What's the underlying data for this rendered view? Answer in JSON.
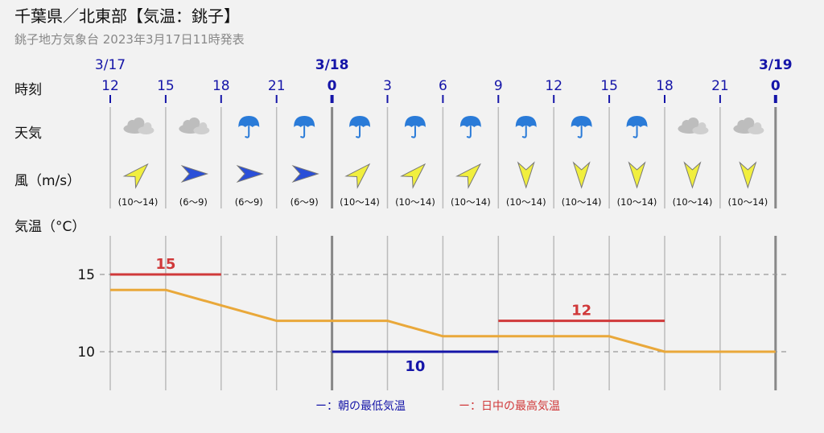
{
  "header": {
    "title": "千葉県／北東部【気温：銚子】",
    "subtitle": "銚子地方気象台 2023年3月17日11時発表"
  },
  "rows": {
    "time_label": "時刻",
    "weather_label": "天気",
    "wind_label": "風（m/s）",
    "temp_label": "気温（°C）"
  },
  "colors": {
    "date": "#1515a8",
    "temp_line": "#e9a83a",
    "min_temp": "#1515a8",
    "max_temp": "#d0393a",
    "wind_arrow": "#f1ef3e",
    "wind_arrow_west": "#2a4fd8",
    "umbrella": "#2a7bd8",
    "cloud": "#bdbdbd"
  },
  "dates": [
    {
      "label": "3/17",
      "slot": 0,
      "bold": false
    },
    {
      "label": "3/18",
      "slot": 4,
      "bold": true
    },
    {
      "label": "3/19",
      "slot": 12,
      "bold": true
    }
  ],
  "time_ticks": [
    "12",
    "15",
    "18",
    "21",
    "0",
    "3",
    "6",
    "9",
    "12",
    "15",
    "18",
    "21",
    "0"
  ],
  "weather": [
    "cloud-icon",
    "cloud-icon",
    "umbrella-icon",
    "umbrella-icon",
    "umbrella-icon",
    "umbrella-icon",
    "umbrella-icon",
    "umbrella-icon",
    "umbrella-icon",
    "umbrella-icon",
    "cloud-icon",
    "cloud-icon"
  ],
  "wind": [
    {
      "dir": "SW",
      "speed": "(10〜14)"
    },
    {
      "dir": "W",
      "speed": "(6〜9)"
    },
    {
      "dir": "W",
      "speed": "(6〜9)"
    },
    {
      "dir": "W",
      "speed": "(6〜9)"
    },
    {
      "dir": "SW",
      "speed": "(10〜14)"
    },
    {
      "dir": "SW",
      "speed": "(10〜14)"
    },
    {
      "dir": "SW",
      "speed": "(10〜14)"
    },
    {
      "dir": "N",
      "speed": "(10〜14)"
    },
    {
      "dir": "N",
      "speed": "(10〜14)"
    },
    {
      "dir": "N",
      "speed": "(10〜14)"
    },
    {
      "dir": "N",
      "speed": "(10〜14)"
    },
    {
      "dir": "N",
      "speed": "(10〜14)"
    }
  ],
  "legend": {
    "min_label": "ー：朝の最低気温",
    "max_label": "ー：日中の最高気温"
  },
  "chart_data": {
    "type": "line",
    "x": [
      "12",
      "15",
      "18",
      "21",
      "0",
      "3",
      "6",
      "9",
      "12",
      "15",
      "18",
      "21",
      "0"
    ],
    "series": [
      {
        "values": [
          14,
          14,
          13,
          12,
          12,
          12,
          11,
          11,
          11,
          11,
          10,
          10,
          10
        ]
      }
    ],
    "min_temp": {
      "value": 10,
      "label": "10",
      "from": 4,
      "to": 7
    },
    "max_temp": [
      {
        "value": 15,
        "label": "15",
        "from": 0,
        "to": 2
      },
      {
        "value": 12,
        "label": "12",
        "from": 7,
        "to": 10
      }
    ],
    "yticks": [
      10,
      15
    ],
    "ylim": [
      7.5,
      17.5
    ],
    "grid": "dashed horizontal at yticks"
  }
}
